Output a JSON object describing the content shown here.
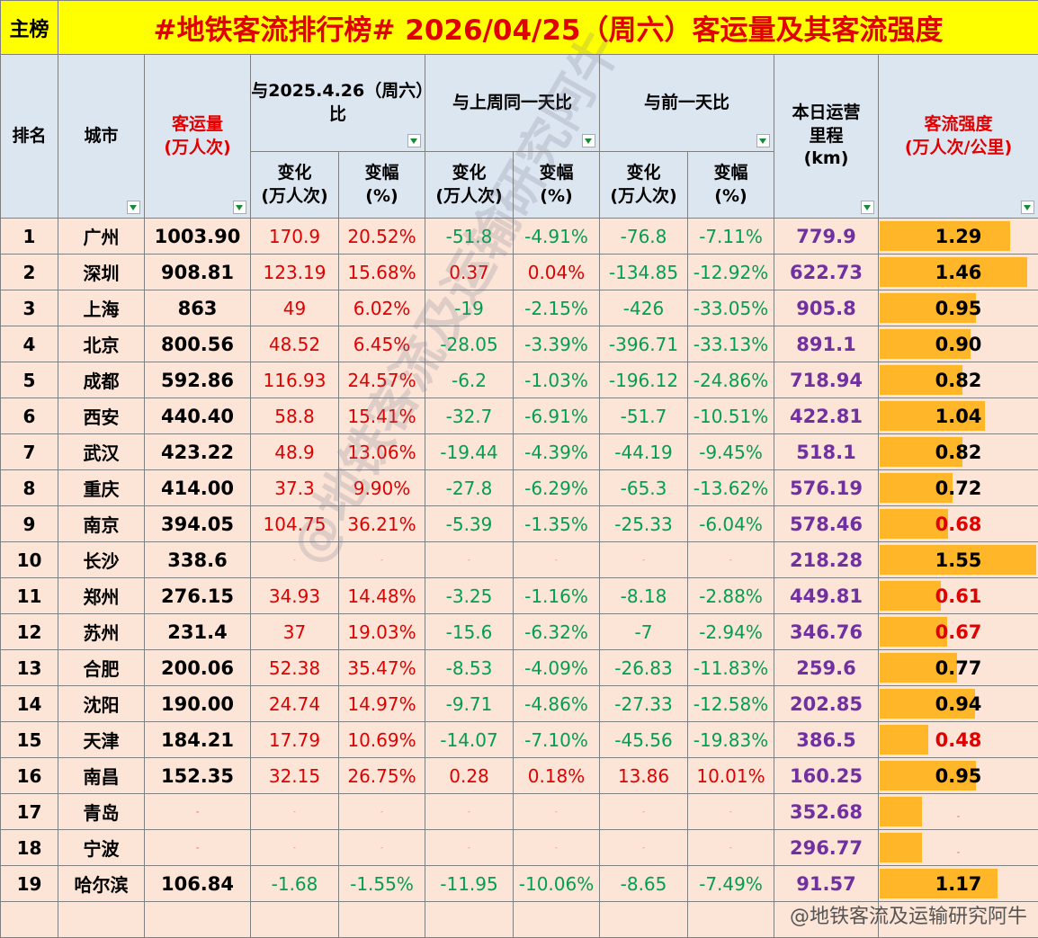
{
  "title_bar": {
    "tag": "主榜",
    "title": "#地铁客流排行榜# 2026/04/25（周六）客运量及其客流强度"
  },
  "table": {
    "headers": {
      "rank": "排名",
      "city": "城市",
      "volume": [
        "客运量",
        "(万人次)"
      ],
      "yoy": "与2025.4.26（周六）比",
      "wow": "与上周同一天比",
      "dod": "与前一天比",
      "mileage": [
        "本日运营",
        "里程",
        "(km)"
      ],
      "intensity": [
        "客流强度",
        "(万人次/公里)"
      ],
      "change": [
        "变化",
        "(万人次)"
      ],
      "pct": [
        "变幅",
        "(%)"
      ]
    },
    "rows": [
      [
        "1",
        "广州",
        "1003.90",
        "170.9",
        "20.52%",
        "-51.8",
        "-4.91%",
        "-76.8",
        "-7.11%",
        "779.9",
        "1.29"
      ],
      [
        "2",
        "深圳",
        "908.81",
        "123.19",
        "15.68%",
        "0.37",
        "0.04%",
        "-134.85",
        "-12.92%",
        "622.73",
        "1.46"
      ],
      [
        "3",
        "上海",
        "863",
        "49",
        "6.02%",
        "-19",
        "-2.15%",
        "-426",
        "-33.05%",
        "905.8",
        "0.95"
      ],
      [
        "4",
        "北京",
        "800.56",
        "48.52",
        "6.45%",
        "-28.05",
        "-3.39%",
        "-396.71",
        "-33.13%",
        "891.1",
        "0.90"
      ],
      [
        "5",
        "成都",
        "592.86",
        "116.93",
        "24.57%",
        "-6.2",
        "-1.03%",
        "-196.12",
        "-24.86%",
        "718.94",
        "0.82"
      ],
      [
        "6",
        "西安",
        "440.40",
        "58.8",
        "15.41%",
        "-32.7",
        "-6.91%",
        "-51.7",
        "-10.51%",
        "422.81",
        "1.04"
      ],
      [
        "7",
        "武汉",
        "423.22",
        "48.9",
        "13.06%",
        "-19.44",
        "-4.39%",
        "-44.19",
        "-9.45%",
        "518.1",
        "0.82"
      ],
      [
        "8",
        "重庆",
        "414.00",
        "37.3",
        "9.90%",
        "-27.8",
        "-6.29%",
        "-65.3",
        "-13.62%",
        "576.19",
        "0.72"
      ],
      [
        "9",
        "南京",
        "394.05",
        "104.75",
        "36.21%",
        "-5.39",
        "-1.35%",
        "-25.33",
        "-6.04%",
        "578.46",
        "0.68"
      ],
      [
        "10",
        "长沙",
        "338.6",
        "-",
        "-",
        "-",
        "-",
        "-",
        "-",
        "218.28",
        "1.55"
      ],
      [
        "11",
        "郑州",
        "276.15",
        "34.93",
        "14.48%",
        "-3.25",
        "-1.16%",
        "-8.18",
        "-2.88%",
        "449.81",
        "0.61"
      ],
      [
        "12",
        "苏州",
        "231.4",
        "37",
        "19.03%",
        "-15.6",
        "-6.32%",
        "-7",
        "-2.94%",
        "346.76",
        "0.67"
      ],
      [
        "13",
        "合肥",
        "200.06",
        "52.38",
        "35.47%",
        "-8.53",
        "-4.09%",
        "-26.83",
        "-11.83%",
        "259.6",
        "0.77"
      ],
      [
        "14",
        "沈阳",
        "190.00",
        "24.74",
        "14.97%",
        "-9.71",
        "-4.86%",
        "-27.33",
        "-12.58%",
        "202.85",
        "0.94"
      ],
      [
        "15",
        "天津",
        "184.21",
        "17.79",
        "10.69%",
        "-14.07",
        "-7.10%",
        "-45.56",
        "-19.83%",
        "386.5",
        "0.48"
      ],
      [
        "16",
        "南昌",
        "152.35",
        "32.15",
        "26.75%",
        "0.28",
        "0.18%",
        "13.86",
        "10.01%",
        "160.25",
        "0.95"
      ],
      [
        "17",
        "青岛",
        "-",
        "-",
        "-",
        "-",
        "-",
        "-",
        "-",
        "352.68",
        "-"
      ],
      [
        "18",
        "宁波",
        "-",
        "-",
        "-",
        "-",
        "-",
        "-",
        "-",
        "296.77",
        "-"
      ],
      [
        "19",
        "哈尔滨",
        "106.84",
        "-1.68",
        "-1.55%",
        "-11.95",
        "-10.06%",
        "-8.65",
        "-7.49%",
        "91.57",
        "1.17"
      ]
    ],
    "intensity_bars": [
      1.29,
      1.46,
      0.95,
      0.9,
      0.82,
      1.04,
      0.82,
      0.72,
      0.68,
      1.55,
      0.61,
      0.67,
      0.77,
      0.94,
      0.48,
      0.95,
      0.42,
      0.42,
      1.17
    ]
  },
  "watermark": "@地铁客流及运输研究阿牛"
}
